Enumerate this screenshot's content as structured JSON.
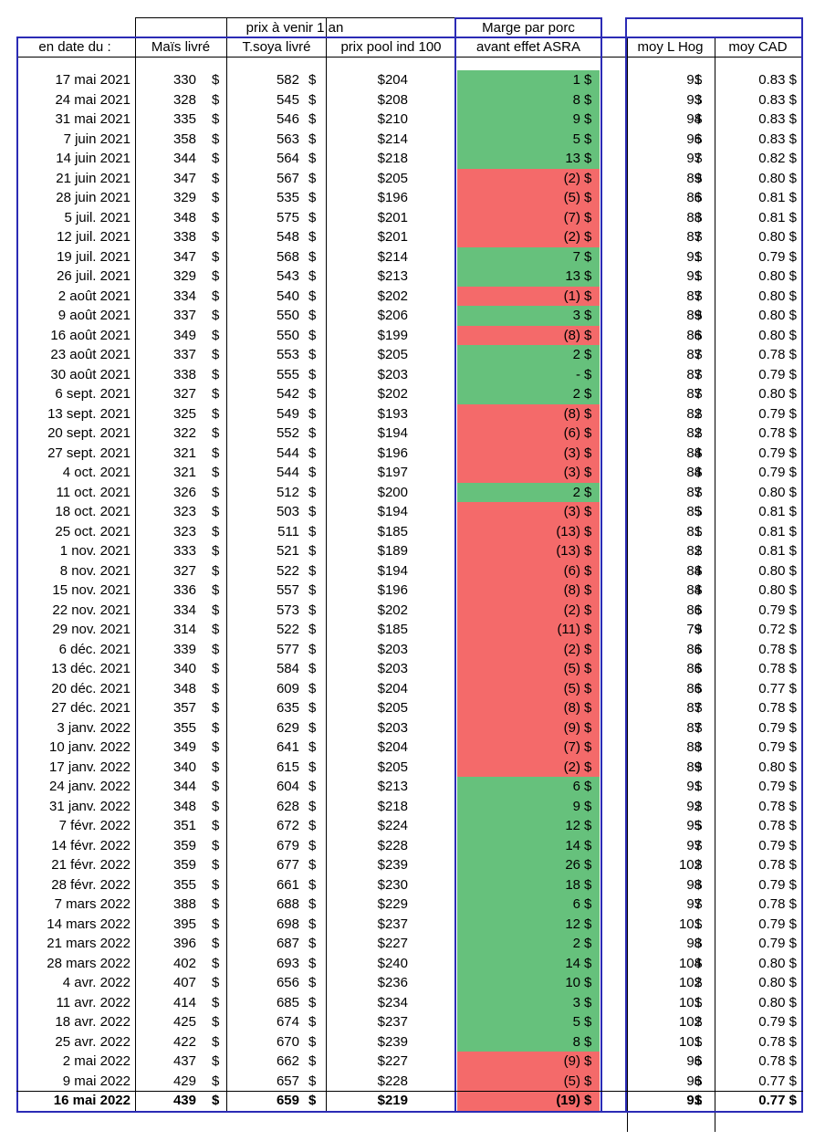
{
  "header": {
    "group_label": "prix à venir 1 an",
    "margin_label_line1": "Marge par porc",
    "margin_label_line2": "avant effet ASRA",
    "col_date": "en date du :",
    "col_mais": "Maïs livré",
    "col_soya": "T.soya livré",
    "col_pool": "prix pool ind 100",
    "col_hog": "moy L Hog",
    "col_cad": "moy CAD"
  },
  "currency_symbol": "$",
  "colors": {
    "positive": "#66c17c",
    "negative": "#f46a6a",
    "border": "#2b2bb5"
  },
  "rows": [
    {
      "date": "17 mai 2021",
      "mais": "330",
      "soya": "582",
      "pool": "$204",
      "marge": "1",
      "sign": "pos",
      "hog": "91",
      "cad": "0.83 $"
    },
    {
      "date": "24 mai 2021",
      "mais": "328",
      "soya": "545",
      "pool": "$208",
      "marge": "8",
      "sign": "pos",
      "hog": "93",
      "cad": "0.83 $"
    },
    {
      "date": "31 mai 2021",
      "mais": "335",
      "soya": "546",
      "pool": "$210",
      "marge": "9",
      "sign": "pos",
      "hog": "94",
      "cad": "0.83 $"
    },
    {
      "date": "7 juin 2021",
      "mais": "358",
      "soya": "563",
      "pool": "$214",
      "marge": "5",
      "sign": "pos",
      "hog": "96",
      "cad": "0.83 $"
    },
    {
      "date": "14 juin 2021",
      "mais": "344",
      "soya": "564",
      "pool": "$218",
      "marge": "13",
      "sign": "pos",
      "hog": "97",
      "cad": "0.82 $"
    },
    {
      "date": "21 juin 2021",
      "mais": "347",
      "soya": "567",
      "pool": "$205",
      "marge": "(2)",
      "sign": "neg",
      "hog": "89",
      "cad": "0.80 $"
    },
    {
      "date": "28 juin 2021",
      "mais": "329",
      "soya": "535",
      "pool": "$196",
      "marge": "(5)",
      "sign": "neg",
      "hog": "86",
      "cad": "0.81 $"
    },
    {
      "date": "5 juil. 2021",
      "mais": "348",
      "soya": "575",
      "pool": "$201",
      "marge": "(7)",
      "sign": "neg",
      "hog": "88",
      "cad": "0.81 $"
    },
    {
      "date": "12 juil. 2021",
      "mais": "338",
      "soya": "548",
      "pool": "$201",
      "marge": "(2)",
      "sign": "neg",
      "hog": "87",
      "cad": "0.80 $"
    },
    {
      "date": "19 juil. 2021",
      "mais": "347",
      "soya": "568",
      "pool": "$214",
      "marge": "7",
      "sign": "pos",
      "hog": "91",
      "cad": "0.79 $"
    },
    {
      "date": "26 juil. 2021",
      "mais": "329",
      "soya": "543",
      "pool": "$213",
      "marge": "13",
      "sign": "pos",
      "hog": "91",
      "cad": "0.80 $"
    },
    {
      "date": "2 août 2021",
      "mais": "334",
      "soya": "540",
      "pool": "$202",
      "marge": "(1)",
      "sign": "neg",
      "hog": "87",
      "cad": "0.80 $"
    },
    {
      "date": "9 août 2021",
      "mais": "337",
      "soya": "550",
      "pool": "$206",
      "marge": "3",
      "sign": "pos",
      "hog": "89",
      "cad": "0.80 $"
    },
    {
      "date": "16 août 2021",
      "mais": "349",
      "soya": "550",
      "pool": "$199",
      "marge": "(8)",
      "sign": "neg",
      "hog": "86",
      "cad": "0.80 $"
    },
    {
      "date": "23 août 2021",
      "mais": "337",
      "soya": "553",
      "pool": "$205",
      "marge": "2",
      "sign": "pos",
      "hog": "87",
      "cad": "0.78 $"
    },
    {
      "date": "30 août 2021",
      "mais": "338",
      "soya": "555",
      "pool": "$203",
      "marge": "-",
      "sign": "pos",
      "hog": "87",
      "cad": "0.79 $"
    },
    {
      "date": "6 sept. 2021",
      "mais": "327",
      "soya": "542",
      "pool": "$202",
      "marge": "2",
      "sign": "pos",
      "hog": "87",
      "cad": "0.80 $"
    },
    {
      "date": "13 sept. 2021",
      "mais": "325",
      "soya": "549",
      "pool": "$193",
      "marge": "(8)",
      "sign": "neg",
      "hog": "82",
      "cad": "0.79 $"
    },
    {
      "date": "20 sept. 2021",
      "mais": "322",
      "soya": "552",
      "pool": "$194",
      "marge": "(6)",
      "sign": "neg",
      "hog": "82",
      "cad": "0.78 $"
    },
    {
      "date": "27 sept. 2021",
      "mais": "321",
      "soya": "544",
      "pool": "$196",
      "marge": "(3)",
      "sign": "neg",
      "hog": "84",
      "cad": "0.79 $"
    },
    {
      "date": "4 oct. 2021",
      "mais": "321",
      "soya": "544",
      "pool": "$197",
      "marge": "(3)",
      "sign": "neg",
      "hog": "84",
      "cad": "0.79 $"
    },
    {
      "date": "11 oct. 2021",
      "mais": "326",
      "soya": "512",
      "pool": "$200",
      "marge": "2",
      "sign": "pos",
      "hog": "87",
      "cad": "0.80 $"
    },
    {
      "date": "18 oct. 2021",
      "mais": "323",
      "soya": "503",
      "pool": "$194",
      "marge": "(3)",
      "sign": "neg",
      "hog": "85",
      "cad": "0.81 $"
    },
    {
      "date": "25 oct. 2021",
      "mais": "323",
      "soya": "511",
      "pool": "$185",
      "marge": "(13)",
      "sign": "neg",
      "hog": "81",
      "cad": "0.81 $"
    },
    {
      "date": "1 nov. 2021",
      "mais": "333",
      "soya": "521",
      "pool": "$189",
      "marge": "(13)",
      "sign": "neg",
      "hog": "82",
      "cad": "0.81 $"
    },
    {
      "date": "8 nov. 2021",
      "mais": "327",
      "soya": "522",
      "pool": "$194",
      "marge": "(6)",
      "sign": "neg",
      "hog": "84",
      "cad": "0.80 $"
    },
    {
      "date": "15 nov. 2021",
      "mais": "336",
      "soya": "557",
      "pool": "$196",
      "marge": "(8)",
      "sign": "neg",
      "hog": "84",
      "cad": "0.80 $"
    },
    {
      "date": "22 nov. 2021",
      "mais": "334",
      "soya": "573",
      "pool": "$202",
      "marge": "(2)",
      "sign": "neg",
      "hog": "86",
      "cad": "0.79 $"
    },
    {
      "date": "29 nov. 2021",
      "mais": "314",
      "soya": "522",
      "pool": "$185",
      "marge": "(11)",
      "sign": "neg",
      "hog": "79",
      "cad": "0.72 $"
    },
    {
      "date": "6 déc. 2021",
      "mais": "339",
      "soya": "577",
      "pool": "$203",
      "marge": "(2)",
      "sign": "neg",
      "hog": "86",
      "cad": "0.78 $"
    },
    {
      "date": "13 déc. 2021",
      "mais": "340",
      "soya": "584",
      "pool": "$203",
      "marge": "(5)",
      "sign": "neg",
      "hog": "86",
      "cad": "0.78 $"
    },
    {
      "date": "20 déc. 2021",
      "mais": "348",
      "soya": "609",
      "pool": "$204",
      "marge": "(5)",
      "sign": "neg",
      "hog": "86",
      "cad": "0.77 $"
    },
    {
      "date": "27 déc. 2021",
      "mais": "357",
      "soya": "635",
      "pool": "$205",
      "marge": "(8)",
      "sign": "neg",
      "hog": "87",
      "cad": "0.78 $"
    },
    {
      "date": "3 janv. 2022",
      "mais": "355",
      "soya": "629",
      "pool": "$203",
      "marge": "(9)",
      "sign": "neg",
      "hog": "87",
      "cad": "0.79 $"
    },
    {
      "date": "10 janv. 2022",
      "mais": "349",
      "soya": "641",
      "pool": "$204",
      "marge": "(7)",
      "sign": "neg",
      "hog": "88",
      "cad": "0.79 $"
    },
    {
      "date": "17 janv. 2022",
      "mais": "340",
      "soya": "615",
      "pool": "$205",
      "marge": "(2)",
      "sign": "neg",
      "hog": "89",
      "cad": "0.80 $"
    },
    {
      "date": "24 janv. 2022",
      "mais": "344",
      "soya": "604",
      "pool": "$213",
      "marge": "6",
      "sign": "pos",
      "hog": "91",
      "cad": "0.79 $"
    },
    {
      "date": "31 janv. 2022",
      "mais": "348",
      "soya": "628",
      "pool": "$218",
      "marge": "9",
      "sign": "pos",
      "hog": "92",
      "cad": "0.78 $"
    },
    {
      "date": "7 févr. 2022",
      "mais": "351",
      "soya": "672",
      "pool": "$224",
      "marge": "12",
      "sign": "pos",
      "hog": "95",
      "cad": "0.78 $"
    },
    {
      "date": "14 févr. 2022",
      "mais": "359",
      "soya": "679",
      "pool": "$228",
      "marge": "14",
      "sign": "pos",
      "hog": "97",
      "cad": "0.79 $"
    },
    {
      "date": "21 févr. 2022",
      "mais": "359",
      "soya": "677",
      "pool": "$239",
      "marge": "26",
      "sign": "pos",
      "hog": "102",
      "cad": "0.78 $"
    },
    {
      "date": "28 févr. 2022",
      "mais": "355",
      "soya": "661",
      "pool": "$230",
      "marge": "18",
      "sign": "pos",
      "hog": "98",
      "cad": "0.79 $"
    },
    {
      "date": "7 mars 2022",
      "mais": "388",
      "soya": "688",
      "pool": "$229",
      "marge": "6",
      "sign": "pos",
      "hog": "97",
      "cad": "0.78 $"
    },
    {
      "date": "14 mars 2022",
      "mais": "395",
      "soya": "698",
      "pool": "$237",
      "marge": "12",
      "sign": "pos",
      "hog": "101",
      "cad": "0.79 $"
    },
    {
      "date": "21 mars 2022",
      "mais": "396",
      "soya": "687",
      "pool": "$227",
      "marge": "2",
      "sign": "pos",
      "hog": "98",
      "cad": "0.79 $"
    },
    {
      "date": "28 mars 2022",
      "mais": "402",
      "soya": "693",
      "pool": "$240",
      "marge": "14",
      "sign": "pos",
      "hog": "104",
      "cad": "0.80 $"
    },
    {
      "date": "4 avr. 2022",
      "mais": "407",
      "soya": "656",
      "pool": "$236",
      "marge": "10",
      "sign": "pos",
      "hog": "102",
      "cad": "0.80 $"
    },
    {
      "date": "11 avr. 2022",
      "mais": "414",
      "soya": "685",
      "pool": "$234",
      "marge": "3",
      "sign": "pos",
      "hog": "101",
      "cad": "0.80 $"
    },
    {
      "date": "18 avr. 2022",
      "mais": "425",
      "soya": "674",
      "pool": "$237",
      "marge": "5",
      "sign": "pos",
      "hog": "102",
      "cad": "0.79 $"
    },
    {
      "date": "25 avr. 2022",
      "mais": "422",
      "soya": "670",
      "pool": "$239",
      "marge": "8",
      "sign": "pos",
      "hog": "101",
      "cad": "0.78 $"
    },
    {
      "date": "2 mai 2022",
      "mais": "437",
      "soya": "662",
      "pool": "$227",
      "marge": "(9)",
      "sign": "neg",
      "hog": "96",
      "cad": "0.78 $"
    },
    {
      "date": "9 mai 2022",
      "mais": "429",
      "soya": "657",
      "pool": "$228",
      "marge": "(5)",
      "sign": "neg",
      "hog": "96",
      "cad": "0.77 $"
    },
    {
      "date": "16 mai 2022",
      "mais": "439",
      "soya": "659",
      "pool": "$219",
      "marge": "(19)",
      "sign": "neg",
      "hog": "91",
      "cad": "0.77 $",
      "bold": true
    }
  ]
}
